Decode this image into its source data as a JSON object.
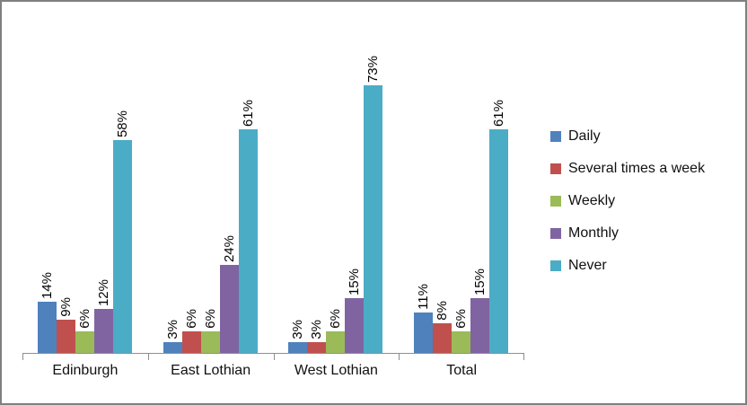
{
  "chart_data": {
    "type": "bar",
    "title": "",
    "xlabel": "",
    "ylabel": "",
    "value_suffix": "%",
    "data_labels": true,
    "data_label_rotation": -90,
    "legend_position": "right",
    "grid": false,
    "categories": [
      "Edinburgh",
      "East Lothian",
      "West Lothian",
      "Total"
    ],
    "series": [
      {
        "name": "Daily",
        "color": "#4F81BD",
        "values": [
          14,
          3,
          3,
          11
        ]
      },
      {
        "name": "Several times a week",
        "color": "#C0504D",
        "values": [
          9,
          6,
          3,
          8
        ]
      },
      {
        "name": "Weekly",
        "color": "#9BBB59",
        "values": [
          6,
          6,
          6,
          6
        ]
      },
      {
        "name": "Monthly",
        "color": "#8064A2",
        "values": [
          12,
          24,
          15,
          15
        ]
      },
      {
        "name": "Never",
        "color": "#4BACC6",
        "values": [
          58,
          61,
          73,
          61
        ]
      }
    ],
    "axis_color": "#8e8e8e",
    "frame_border_color": "#808080"
  }
}
